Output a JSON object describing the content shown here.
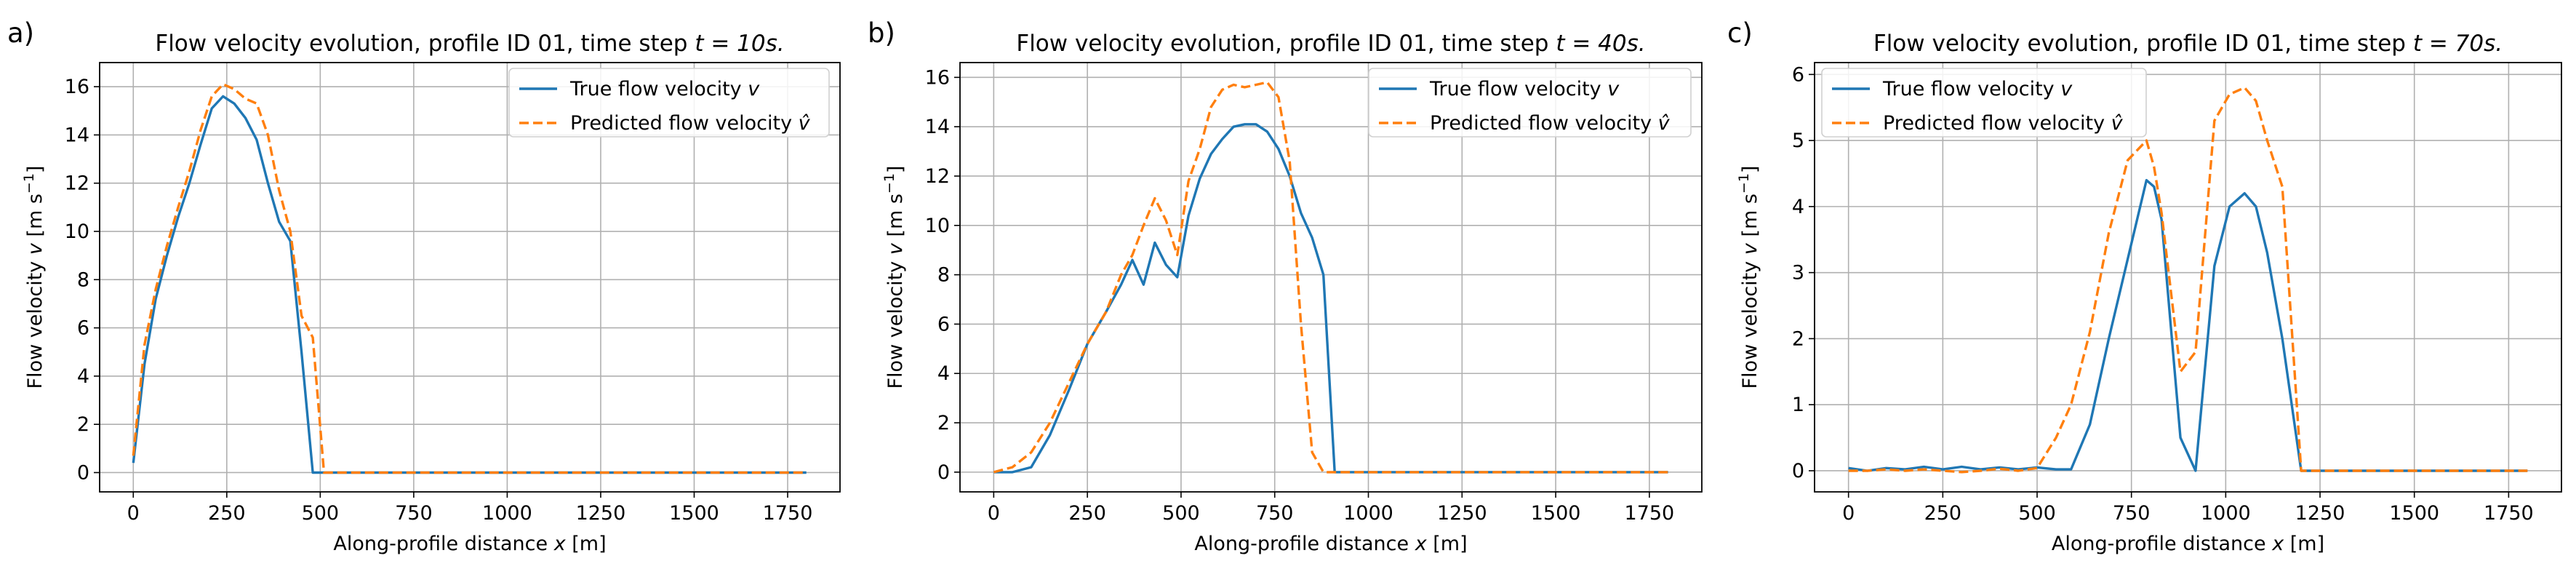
{
  "chart_data": [
    {
      "panel_label": "a)",
      "type": "line",
      "title": "Flow velocity evolution, profile ID 01, time step ",
      "title_math": "t = 10s.",
      "xlabel": "Along-profile distance ",
      "xlabel_math": "x",
      "xlabel_unit": " [m]",
      "ylabel": "Flow velocity ",
      "ylabel_math": "v",
      "ylabel_unit": " [m s",
      "ylabel_exp": "−1",
      "ylabel_close": "]",
      "xlim": [
        -90,
        1890
      ],
      "ylim": [
        -0.8,
        17
      ],
      "xticks": [
        0,
        250,
        500,
        750,
        1000,
        1250,
        1500,
        1750
      ],
      "yticks": [
        0,
        2,
        4,
        6,
        8,
        10,
        12,
        14,
        16
      ],
      "grid": true,
      "legend_position": "top-right",
      "series": [
        {
          "name": "True flow velocity ",
          "name_math": "v",
          "color": "#1f77b4",
          "style": "solid",
          "x": [
            0,
            30,
            60,
            90,
            120,
            150,
            180,
            210,
            240,
            270,
            300,
            330,
            360,
            390,
            420,
            450,
            480,
            510,
            540,
            1800
          ],
          "y": [
            0.4,
            4.5,
            7.2,
            9.0,
            10.6,
            12.0,
            13.6,
            15.1,
            15.6,
            15.3,
            14.7,
            13.8,
            12.0,
            10.4,
            9.6,
            5.0,
            0,
            0,
            0,
            0
          ]
        },
        {
          "name": "Predicted flow velocity ",
          "name_math": "v̂",
          "color": "#ff7f0e",
          "style": "dashed",
          "x": [
            0,
            30,
            60,
            90,
            120,
            150,
            180,
            210,
            240,
            270,
            300,
            330,
            360,
            390,
            420,
            450,
            480,
            510,
            540,
            1800
          ],
          "y": [
            0.7,
            5.3,
            7.6,
            9.4,
            11.0,
            12.5,
            14.2,
            15.6,
            16.1,
            15.9,
            15.5,
            15.3,
            14.0,
            11.7,
            10.0,
            6.5,
            5.6,
            0,
            0,
            0
          ]
        }
      ]
    },
    {
      "panel_label": "b)",
      "type": "line",
      "title": "Flow velocity evolution, profile ID 01, time step ",
      "title_math": "t = 40s.",
      "xlabel": "Along-profile distance ",
      "xlabel_math": "x",
      "xlabel_unit": " [m]",
      "ylabel": "Flow velocity ",
      "ylabel_math": "v",
      "ylabel_unit": " [m s",
      "ylabel_exp": "−1",
      "ylabel_close": "]",
      "xlim": [
        -90,
        1890
      ],
      "ylim": [
        -0.8,
        16.6
      ],
      "xticks": [
        0,
        250,
        500,
        750,
        1000,
        1250,
        1500,
        1750
      ],
      "yticks": [
        0,
        2,
        4,
        6,
        8,
        10,
        12,
        14,
        16
      ],
      "grid": true,
      "legend_position": "top-right",
      "series": [
        {
          "name": "True flow velocity ",
          "name_math": "v",
          "color": "#1f77b4",
          "style": "solid",
          "x": [
            0,
            50,
            100,
            150,
            200,
            250,
            300,
            340,
            370,
            400,
            430,
            460,
            490,
            520,
            550,
            580,
            610,
            640,
            670,
            700,
            730,
            760,
            790,
            820,
            850,
            880,
            910,
            940,
            970,
            1000,
            1800
          ],
          "y": [
            0,
            0,
            0.2,
            1.5,
            3.3,
            5.2,
            6.5,
            7.6,
            8.6,
            7.6,
            9.3,
            8.4,
            7.9,
            10.4,
            11.9,
            12.9,
            13.5,
            14.0,
            14.1,
            14.1,
            13.8,
            13.1,
            12.0,
            10.5,
            9.5,
            8.0,
            0,
            0,
            0,
            0,
            0
          ]
        },
        {
          "name": "Predicted flow velocity ",
          "name_math": "v̂",
          "color": "#ff7f0e",
          "style": "dashed",
          "x": [
            0,
            50,
            100,
            150,
            200,
            250,
            300,
            340,
            370,
            400,
            430,
            460,
            490,
            520,
            550,
            580,
            610,
            640,
            670,
            700,
            730,
            760,
            790,
            820,
            850,
            880,
            910,
            940,
            970,
            1000,
            1800
          ],
          "y": [
            0,
            0.2,
            0.8,
            2.0,
            3.6,
            5.2,
            6.5,
            8.0,
            8.8,
            10.0,
            11.1,
            10.2,
            8.8,
            11.8,
            13.1,
            14.8,
            15.5,
            15.7,
            15.6,
            15.7,
            15.8,
            15.2,
            12.6,
            6.0,
            0.8,
            0,
            0,
            0,
            0,
            0,
            0
          ]
        }
      ]
    },
    {
      "panel_label": "c)",
      "type": "line",
      "title": "Flow velocity evolution, profile ID 01, time step ",
      "title_math": "t = 70s.",
      "xlabel": "Along-profile distance ",
      "xlabel_math": "x",
      "xlabel_unit": " [m]",
      "ylabel": "Flow velocity ",
      "ylabel_math": "v",
      "ylabel_unit": " [m s",
      "ylabel_exp": "−1",
      "ylabel_close": "]",
      "xlim": [
        -90,
        1890
      ],
      "ylim": [
        -0.32,
        6.18
      ],
      "xticks": [
        0,
        250,
        500,
        750,
        1000,
        1250,
        1500,
        1750
      ],
      "yticks": [
        0,
        1,
        2,
        3,
        4,
        5,
        6
      ],
      "grid": true,
      "legend_position": "top-left",
      "series": [
        {
          "name": "True flow velocity ",
          "name_math": "v",
          "color": "#1f77b4",
          "style": "solid",
          "x": [
            0,
            50,
            100,
            150,
            200,
            250,
            300,
            350,
            400,
            450,
            500,
            550,
            590,
            640,
            690,
            740,
            790,
            810,
            830,
            880,
            920,
            970,
            1010,
            1050,
            1080,
            1110,
            1150,
            1200,
            1250,
            1800
          ],
          "y": [
            0.04,
            0,
            0.04,
            0.02,
            0.06,
            0.02,
            0.06,
            0.02,
            0.05,
            0.02,
            0.05,
            0.02,
            0.02,
            0.7,
            2.0,
            3.2,
            4.4,
            4.3,
            3.8,
            0.5,
            0,
            3.1,
            4.0,
            4.2,
            4.0,
            3.3,
            2.0,
            0,
            0,
            0
          ]
        },
        {
          "name": "Predicted flow velocity ",
          "name_math": "v̂",
          "color": "#ff7f0e",
          "style": "dashed",
          "x": [
            0,
            50,
            100,
            150,
            200,
            250,
            300,
            350,
            400,
            450,
            500,
            550,
            590,
            640,
            690,
            740,
            790,
            810,
            830,
            880,
            920,
            970,
            1010,
            1050,
            1080,
            1110,
            1150,
            1200,
            1250,
            1800
          ],
          "y": [
            0,
            0,
            0.02,
            0,
            0.02,
            0,
            -0.02,
            0,
            0.03,
            0,
            0.04,
            0.5,
            1.0,
            2.1,
            3.6,
            4.7,
            5.0,
            4.6,
            3.9,
            1.5,
            1.8,
            5.3,
            5.7,
            5.8,
            5.6,
            5.0,
            4.3,
            0,
            0,
            0
          ]
        }
      ]
    }
  ]
}
